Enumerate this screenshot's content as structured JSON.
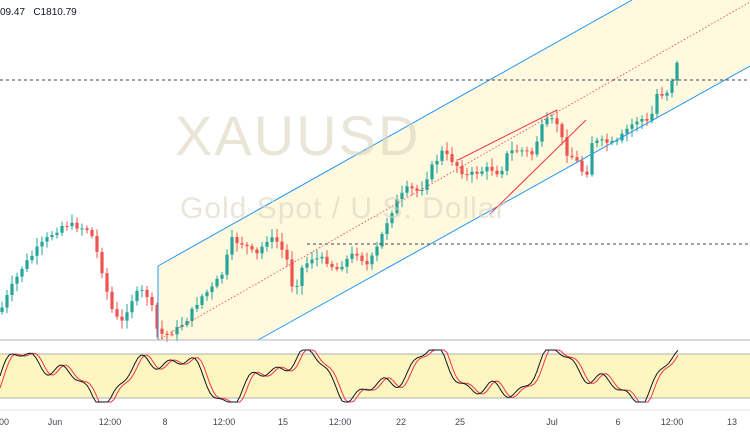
{
  "header": {
    "ohlc_text": "09.47   C1810.79"
  },
  "watermark": {
    "symbol": "XAUUSD",
    "description": "Gold Spot / U.S. Dollar"
  },
  "x_axis": {
    "labels": [
      "00",
      "Jun",
      "12:00",
      "8",
      "12:00",
      "15",
      "12:00",
      "22",
      "25",
      "Jul",
      "6",
      "12:00",
      "13"
    ]
  },
  "colors": {
    "up": "#26a69a",
    "down": "#ef5350",
    "channel_line": "#2196f3",
    "channel_fill": "#fff9e0",
    "trend_red": "#f23645",
    "stoch_k": "#131722",
    "stoch_d": "#f23645",
    "stoch_band": "#fdf6c0",
    "level_line": "#434651"
  },
  "indicators": {
    "main_panel": "price candles with ascending regression channel",
    "lower_panel": "stochastic oscillator"
  }
}
